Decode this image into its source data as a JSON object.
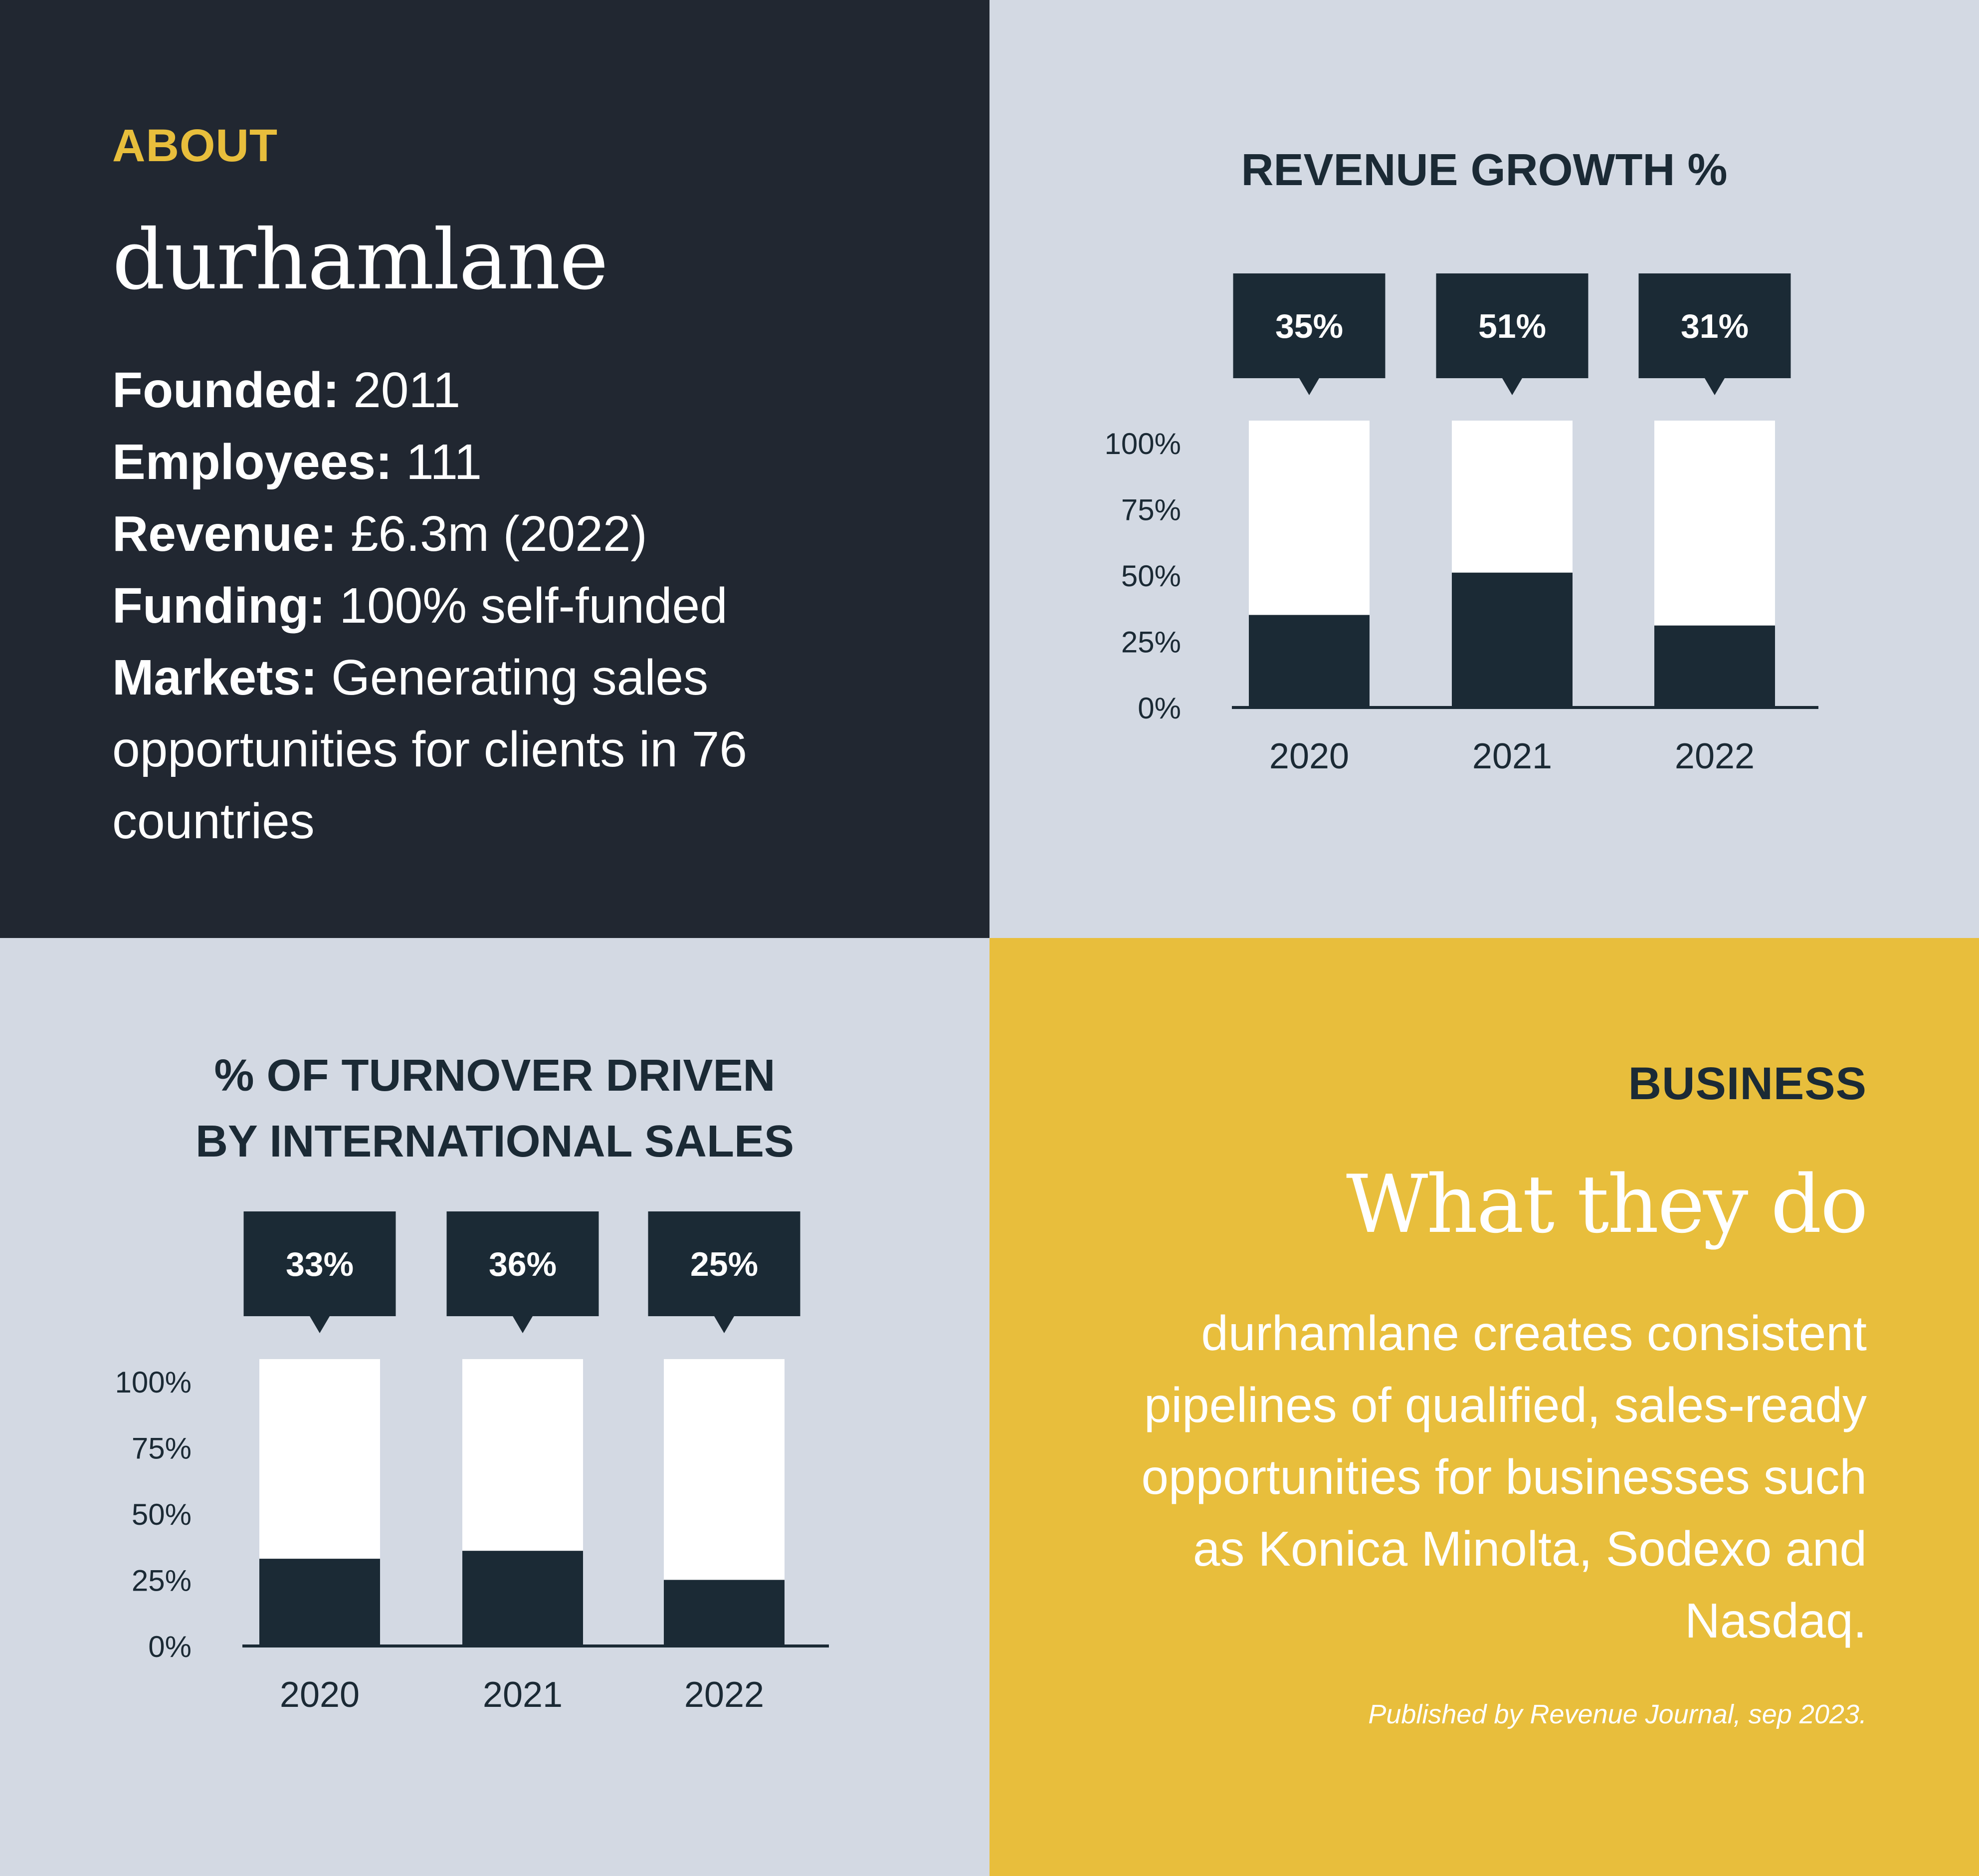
{
  "about": {
    "eyebrow": "ABOUT",
    "company": "durhamlane",
    "facts": [
      {
        "label": "Founded:",
        "value": "2011"
      },
      {
        "label": "Employees:",
        "value": "111"
      },
      {
        "label": "Revenue:",
        "value": "£6.3m (2022)"
      },
      {
        "label": "Funding:",
        "value": "100% self-funded"
      },
      {
        "label": "Markets:",
        "value": "Generating sales opportunities for clients in 76 countries"
      }
    ]
  },
  "business": {
    "eyebrow": "BUSINESS",
    "heading": "What they do",
    "description": "durhamlane creates consistent pipelines of qualified, sales-ready opportunities for businesses such as Konica Minolta, Sodexo and Nasdaq.",
    "credit": "Published by Revenue Journal, sep 2023."
  },
  "colors": {
    "navy": "#212731",
    "bar_dark": "#1b2a35",
    "panel_grey": "#d3d9e3",
    "accent_yellow": "#e8be3c",
    "white": "#ffffff"
  },
  "chart_data": [
    {
      "type": "bar",
      "title": "REVENUE GROWTH %",
      "categories": [
        "2020",
        "2021",
        "2022"
      ],
      "values": [
        35,
        51,
        31
      ],
      "data_labels": [
        "35%",
        "51%",
        "31%"
      ],
      "yticks": [
        "0%",
        "25%",
        "50%",
        "75%",
        "100%"
      ],
      "ylim": [
        0,
        100
      ],
      "grid": false
    },
    {
      "type": "bar",
      "title": "% OF TURNOVER DRIVEN BY INTERNATIONAL SALES",
      "title_lines": [
        "% OF TURNOVER DRIVEN",
        "BY INTERNATIONAL SALES"
      ],
      "categories": [
        "2020",
        "2021",
        "2022"
      ],
      "values": [
        33,
        36,
        25
      ],
      "data_labels": [
        "33%",
        "36%",
        "25%"
      ],
      "yticks": [
        "0%",
        "25%",
        "50%",
        "75%",
        "100%"
      ],
      "ylim": [
        0,
        100
      ],
      "grid": false
    }
  ]
}
